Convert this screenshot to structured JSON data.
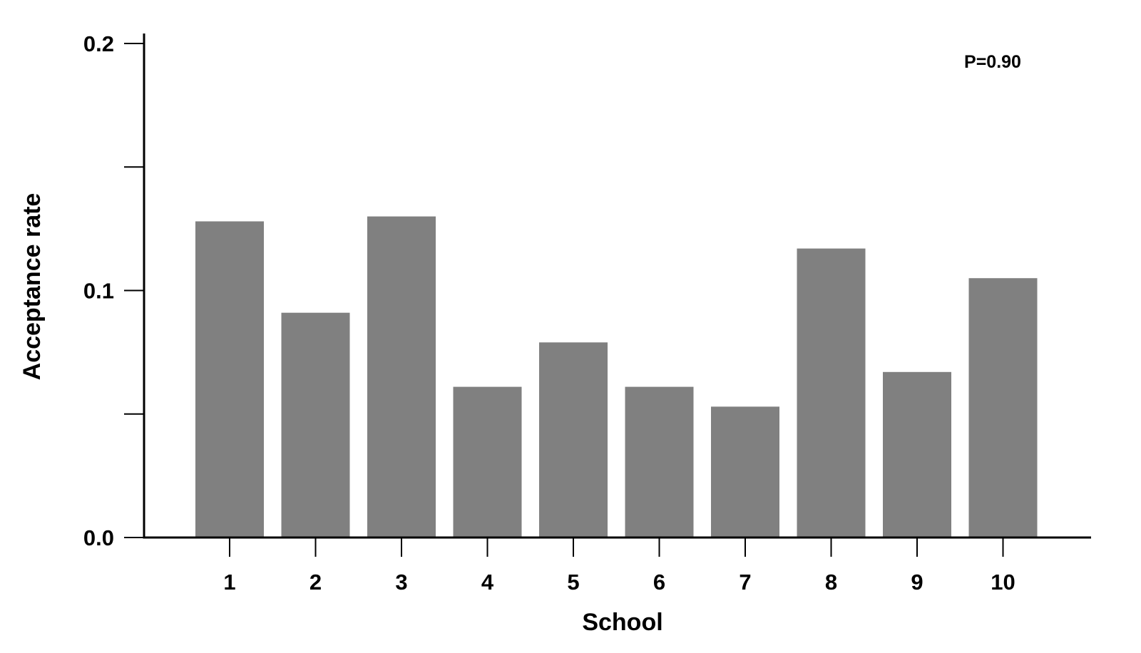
{
  "chart_data": {
    "type": "bar",
    "categories": [
      "1",
      "2",
      "3",
      "4",
      "5",
      "6",
      "7",
      "8",
      "9",
      "10"
    ],
    "values": [
      0.128,
      0.091,
      0.13,
      0.061,
      0.079,
      0.061,
      0.053,
      0.117,
      0.067,
      0.105
    ],
    "title": "",
    "xlabel": "School",
    "ylabel": "Acceptance rate",
    "ylim": [
      0,
      0.2
    ],
    "yticks": [
      {
        "value": 0.0,
        "label": "0.0"
      },
      {
        "value": 0.05,
        "label": ""
      },
      {
        "value": 0.1,
        "label": "0.1"
      },
      {
        "value": 0.15,
        "label": ""
      },
      {
        "value": 0.2,
        "label": "0.2"
      }
    ],
    "annotation": "P=0.90",
    "annotation_position": "top-right",
    "bar_color": "#808080",
    "axis_color": "#000000",
    "grid": false,
    "legend": "none"
  }
}
